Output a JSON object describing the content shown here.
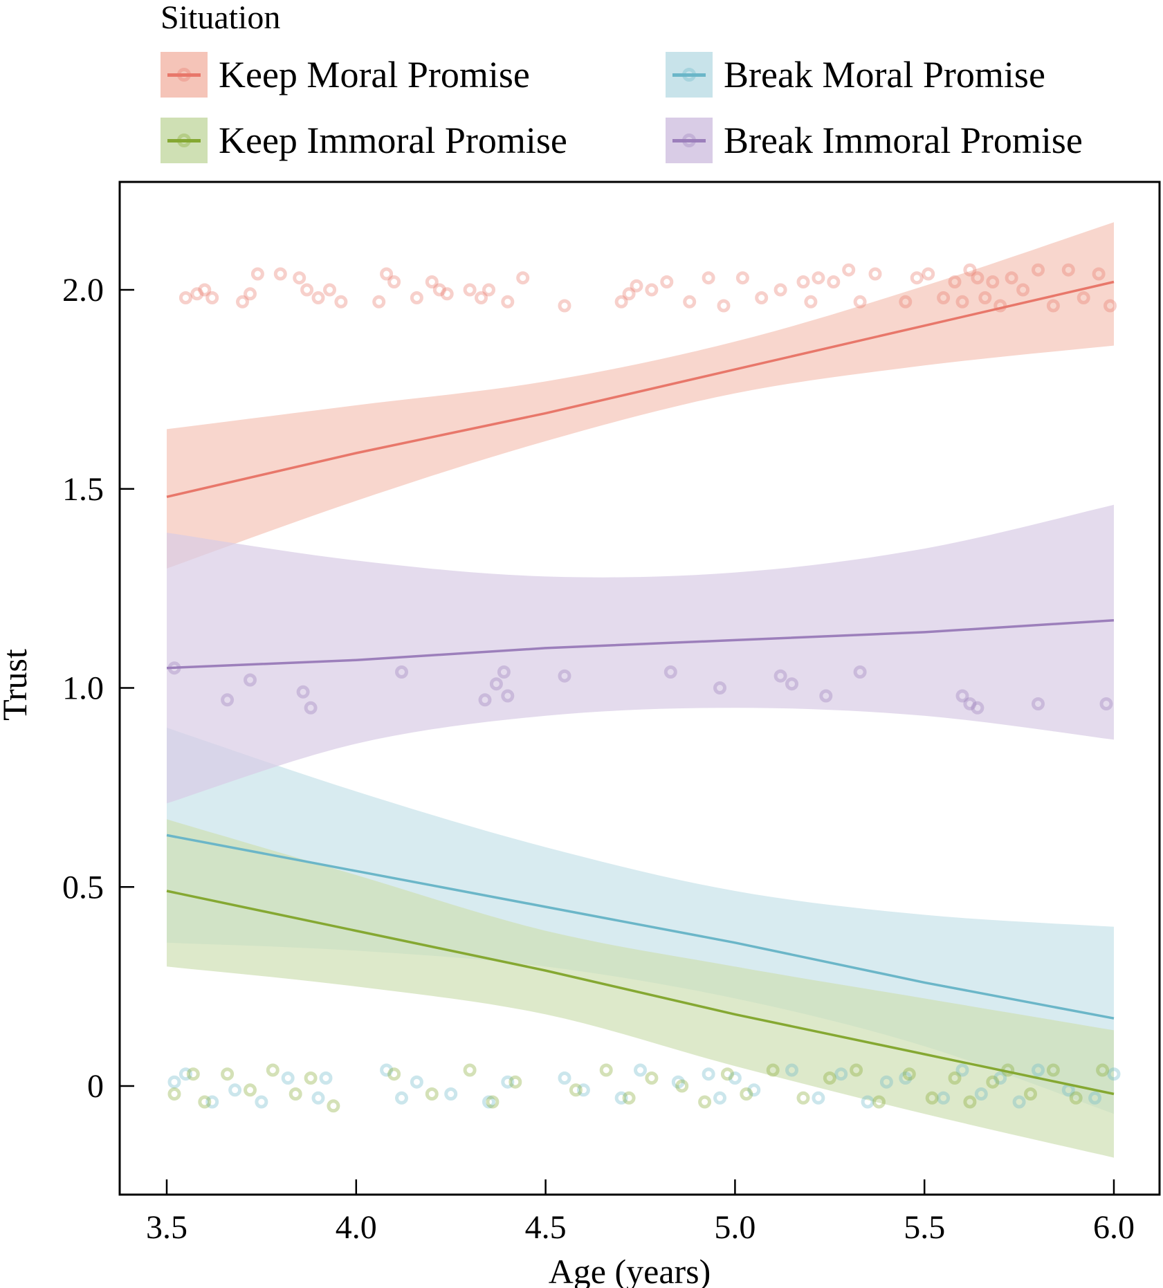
{
  "chart_data": {
    "type": "scatter",
    "title": "",
    "xlabel": "Age (years)",
    "ylabel": "Trust",
    "xlim": [
      3.38,
      6.06
    ],
    "ylim": [
      -0.28,
      2.26
    ],
    "xticks": [
      3.5,
      4.0,
      4.5,
      5.0,
      5.5,
      6.0
    ],
    "xtick_labels": [
      "3.5",
      "4.0",
      "4.5",
      "5.0",
      "5.5",
      "6.0"
    ],
    "yticks": [
      0,
      0.5,
      1.0,
      1.5,
      2.0
    ],
    "ytick_labels": [
      "0",
      "0.5",
      "1.0",
      "1.5",
      "2.0"
    ],
    "grid": false,
    "legend": {
      "title": "Situation",
      "placement": "top",
      "entries": [
        "Keep Moral Promise",
        "Break Moral Promise",
        "Keep Immoral Promise",
        "Break Immoral Promise"
      ]
    },
    "series": [
      {
        "name": "Keep Moral Promise",
        "color": "#e8776a",
        "band_color": "#f5c4b8",
        "fit": {
          "x": [
            3.5,
            4.0,
            4.5,
            5.0,
            5.5,
            6.0
          ],
          "y": [
            1.48,
            1.59,
            1.69,
            1.8,
            1.91,
            2.02
          ]
        },
        "ci_lower": {
          "x": [
            3.5,
            4.0,
            4.5,
            5.0,
            5.5,
            6.0
          ],
          "y": [
            1.3,
            1.47,
            1.62,
            1.74,
            1.81,
            1.86
          ]
        },
        "ci_upper": {
          "x": [
            3.5,
            4.0,
            4.5,
            5.0,
            5.5,
            6.0
          ],
          "y": [
            1.65,
            1.71,
            1.77,
            1.87,
            2.01,
            2.17
          ]
        },
        "points_level": 2,
        "points_x": [
          3.55,
          3.58,
          3.6,
          3.62,
          3.7,
          3.72,
          3.74,
          3.8,
          3.85,
          3.87,
          3.9,
          3.93,
          3.96,
          4.06,
          4.08,
          4.1,
          4.16,
          4.2,
          4.22,
          4.24,
          4.3,
          4.33,
          4.35,
          4.4,
          4.44,
          4.55,
          4.7,
          4.72,
          4.74,
          4.78,
          4.82,
          4.88,
          4.93,
          4.97,
          5.02,
          5.07,
          5.12,
          5.18,
          5.2,
          5.22,
          5.26,
          5.3,
          5.33,
          5.37,
          5.45,
          5.48,
          5.51,
          5.55,
          5.58,
          5.6,
          5.62,
          5.64,
          5.66,
          5.68,
          5.7,
          5.73,
          5.76,
          5.8,
          5.84,
          5.88,
          5.92,
          5.96,
          5.99
        ],
        "points_y": [
          1.98,
          1.99,
          2.0,
          1.98,
          1.97,
          1.99,
          2.04,
          2.04,
          2.03,
          2.0,
          1.98,
          2.0,
          1.97,
          1.97,
          2.04,
          2.02,
          1.98,
          2.02,
          2.0,
          1.99,
          2.0,
          1.98,
          2.0,
          1.97,
          2.03,
          1.96,
          1.97,
          1.99,
          2.01,
          2.0,
          2.02,
          1.97,
          2.03,
          1.96,
          2.03,
          1.98,
          2.0,
          2.02,
          1.97,
          2.03,
          2.02,
          2.05,
          1.97,
          2.04,
          1.97,
          2.03,
          2.04,
          1.98,
          2.02,
          1.97,
          2.05,
          2.03,
          1.98,
          2.02,
          1.96,
          2.03,
          2.0,
          2.05,
          1.96,
          2.05,
          1.98,
          2.04,
          1.96
        ]
      },
      {
        "name": "Break Moral Promise",
        "color": "#6bb6c8",
        "band_color": "#c8e3ea",
        "fit": {
          "x": [
            3.5,
            4.0,
            4.5,
            5.0,
            5.5,
            6.0
          ],
          "y": [
            0.63,
            0.54,
            0.45,
            0.36,
            0.26,
            0.17
          ]
        },
        "ci_lower": {
          "x": [
            3.5,
            4.0,
            4.5,
            5.0,
            5.5,
            6.0
          ],
          "y": [
            0.36,
            0.34,
            0.3,
            0.22,
            0.1,
            -0.07
          ]
        },
        "ci_upper": {
          "x": [
            3.5,
            4.0,
            4.5,
            5.0,
            5.5,
            6.0
          ],
          "y": [
            0.9,
            0.74,
            0.6,
            0.49,
            0.43,
            0.4
          ]
        },
        "points_level": 0,
        "points_x": [
          3.52,
          3.55,
          3.62,
          3.68,
          3.75,
          3.82,
          3.9,
          3.92,
          4.08,
          4.12,
          4.16,
          4.25,
          4.35,
          4.4,
          4.55,
          4.6,
          4.7,
          4.75,
          4.85,
          4.93,
          4.96,
          5.0,
          5.05,
          5.15,
          5.22,
          5.28,
          5.35,
          5.4,
          5.45,
          5.55,
          5.6,
          5.65,
          5.7,
          5.75,
          5.8,
          5.88,
          5.95,
          6.0
        ],
        "points_y": [
          0.01,
          0.03,
          -0.04,
          -0.01,
          -0.04,
          0.02,
          -0.03,
          0.02,
          0.04,
          -0.03,
          0.01,
          -0.02,
          -0.04,
          0.01,
          0.02,
          -0.01,
          -0.03,
          0.04,
          0.01,
          0.03,
          -0.03,
          0.02,
          -0.01,
          0.04,
          -0.03,
          0.03,
          -0.04,
          0.01,
          0.02,
          -0.03,
          0.04,
          -0.02,
          0.02,
          -0.04,
          0.04,
          -0.01,
          -0.03,
          0.03
        ]
      },
      {
        "name": "Keep Immoral Promise",
        "color": "#85a832",
        "band_color": "#cfe0b4",
        "fit": {
          "x": [
            3.5,
            4.0,
            4.5,
            5.0,
            5.5,
            6.0
          ],
          "y": [
            0.49,
            0.39,
            0.29,
            0.18,
            0.08,
            -0.02
          ]
        },
        "ci_lower": {
          "x": [
            3.5,
            4.0,
            4.5,
            5.0,
            5.5,
            6.0
          ],
          "y": [
            0.3,
            0.25,
            0.18,
            0.05,
            -0.07,
            -0.18
          ]
        },
        "ci_upper": {
          "x": [
            3.5,
            4.0,
            4.5,
            5.0,
            5.5,
            6.0
          ],
          "y": [
            0.67,
            0.53,
            0.39,
            0.3,
            0.22,
            0.14
          ]
        },
        "points_level": 0,
        "points_x": [
          3.52,
          3.57,
          3.6,
          3.66,
          3.72,
          3.78,
          3.84,
          3.88,
          3.94,
          4.1,
          4.2,
          4.3,
          4.36,
          4.42,
          4.58,
          4.66,
          4.72,
          4.78,
          4.86,
          4.92,
          4.98,
          5.03,
          5.1,
          5.18,
          5.25,
          5.32,
          5.38,
          5.46,
          5.52,
          5.58,
          5.62,
          5.68,
          5.72,
          5.78,
          5.84,
          5.9,
          5.97
        ],
        "points_y": [
          -0.02,
          0.03,
          -0.04,
          0.03,
          -0.01,
          0.04,
          -0.02,
          0.02,
          -0.05,
          0.03,
          -0.02,
          0.04,
          -0.04,
          0.01,
          -0.01,
          0.04,
          -0.03,
          0.02,
          0.0,
          -0.04,
          0.03,
          -0.02,
          0.04,
          -0.03,
          0.02,
          0.04,
          -0.04,
          0.03,
          -0.03,
          0.02,
          -0.04,
          0.01,
          0.04,
          -0.02,
          0.04,
          -0.03,
          0.04
        ]
      },
      {
        "name": "Break Immoral Promise",
        "color": "#9c7fbb",
        "band_color": "#d9cce6",
        "fit": {
          "x": [
            3.5,
            4.0,
            4.5,
            5.0,
            5.5,
            6.0
          ],
          "y": [
            1.05,
            1.07,
            1.1,
            1.12,
            1.14,
            1.17
          ]
        },
        "ci_lower": {
          "x": [
            3.5,
            4.0,
            4.5,
            5.0,
            5.5,
            6.0
          ],
          "y": [
            0.71,
            0.86,
            0.93,
            0.95,
            0.93,
            0.87
          ]
        },
        "ci_upper": {
          "x": [
            3.5,
            4.0,
            4.5,
            5.0,
            5.5,
            6.0
          ],
          "y": [
            1.39,
            1.32,
            1.28,
            1.29,
            1.35,
            1.46
          ]
        },
        "points_level": 1,
        "points_x": [
          3.52,
          3.66,
          3.72,
          3.86,
          3.88,
          4.12,
          4.34,
          4.37,
          4.39,
          4.4,
          4.55,
          4.83,
          4.96,
          5.12,
          5.15,
          5.24,
          5.33,
          5.6,
          5.62,
          5.64,
          5.8,
          5.98
        ],
        "points_y": [
          1.05,
          0.97,
          1.02,
          0.99,
          0.95,
          1.04,
          0.97,
          1.01,
          1.04,
          0.98,
          1.03,
          1.04,
          1.0,
          1.03,
          1.01,
          0.98,
          1.04,
          0.98,
          0.96,
          0.95,
          0.96,
          0.96
        ]
      }
    ]
  }
}
